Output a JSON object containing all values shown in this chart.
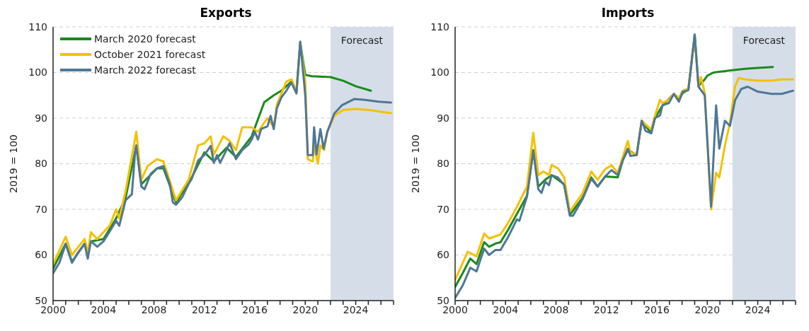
{
  "chart_data": [
    {
      "type": "line",
      "title": "Exports",
      "ylabel": "2019 = 100",
      "xlim": [
        2000,
        2027
      ],
      "xticks": [
        2000,
        {
          "value": 2001,
          "label": null
        },
        {
          "value": 2002,
          "label": null
        },
        {
          "value": 2003,
          "label": null
        },
        2004,
        {
          "value": 2005,
          "label": null
        },
        {
          "value": 2006,
          "label": null
        },
        {
          "value": 2007,
          "label": null
        },
        2008,
        {
          "value": 2009,
          "label": null
        },
        {
          "value": 2010,
          "label": null
        },
        {
          "value": 2011,
          "label": null
        },
        2012,
        {
          "value": 2013,
          "label": null
        },
        {
          "value": 2014,
          "label": null
        },
        {
          "value": 2015,
          "label": null
        },
        2016,
        {
          "value": 2017,
          "label": null
        },
        {
          "value": 2018,
          "label": null
        },
        {
          "value": 2019,
          "label": null
        },
        2020,
        {
          "value": 2021,
          "label": null
        },
        {
          "value": 2022,
          "label": null
        },
        {
          "value": 2023,
          "label": null
        },
        2024,
        {
          "value": 2025,
          "label": null
        },
        {
          "value": 2026,
          "label": null
        },
        {
          "value": 2027,
          "label": null
        }
      ],
      "ylim": [
        50,
        110
      ],
      "yticks": [
        50,
        60,
        70,
        80,
        90,
        100,
        110
      ],
      "grid": "y",
      "legend": "top left",
      "bands": [
        {
          "axis": "x",
          "from": 2022,
          "to": 2027,
          "label": "Forecast",
          "color": "#d5dee8"
        }
      ],
      "series": [
        {
          "name": "March 2020 forecast",
          "color": "#1a8a1a",
          "x": [
            2000,
            2001,
            2001.5,
            2002.5,
            2002.75,
            2003,
            2004,
            2005,
            2005.75,
            2006.6,
            2007,
            2008.25,
            2008.75,
            2009.75,
            2011,
            2012,
            2012.75,
            2013.75,
            2014.5,
            2015.75,
            2016.75,
            2017.5,
            2018.1,
            2018.9,
            2019.3,
            2019.6,
            2020,
            2020.5,
            2022,
            2023,
            2024,
            2025.2
          ],
          "values": [
            57,
            62.5,
            58.5,
            62.5,
            null,
            63,
            63.5,
            68,
            72.5,
            84,
            75.5,
            79,
            79,
            71.5,
            77,
            82.5,
            80.5,
            83.5,
            81.5,
            86,
            93.5,
            95,
            96,
            98,
            95.6,
            106.5,
            99.5,
            99.2,
            99,
            98.2,
            97,
            96
          ]
        },
        {
          "name": "October 2021 forecast",
          "color": "#f5c000",
          "x": [
            2000,
            2001,
            2001.5,
            2002.5,
            2002.75,
            2003,
            2003.5,
            2004.5,
            2005,
            2005.25,
            2005.75,
            2006.6,
            2007,
            2007.5,
            2008.25,
            2008.75,
            2009.75,
            2010.75,
            2011.5,
            2012,
            2012.5,
            2012.75,
            2013.5,
            2014,
            2014.5,
            2015,
            2015.75,
            2016.25,
            2017,
            2017.5,
            2017.75,
            2018.5,
            2018.9,
            2019.3,
            2019.6,
            2020,
            2020.2,
            2020.6,
            2020.7,
            2021,
            2021.2,
            2021.5,
            2021.75,
            2022.3,
            2023,
            2024,
            2025,
            2026,
            2026.8
          ],
          "values": [
            58,
            64,
            60,
            63.5,
            60.5,
            65,
            63.5,
            66.5,
            70,
            68,
            74,
            87,
            76.5,
            79.5,
            81,
            80.5,
            72,
            76.5,
            84,
            84.5,
            86,
            82,
            86,
            85,
            83,
            88,
            88,
            87,
            90,
            88,
            93,
            98,
            98.5,
            96,
            106.5,
            98,
            81,
            80.5,
            84,
            80,
            84,
            83,
            87,
            90.5,
            91.8,
            92,
            91.8,
            91.4,
            91.1
          ]
        },
        {
          "name": "March 2022 forecast",
          "color": "#4f7796",
          "x": [
            2000,
            2000.5,
            2001,
            2001.5,
            2002,
            2002.5,
            2002.75,
            2003,
            2003.5,
            2004,
            2004.5,
            2005,
            2005.25,
            2005.75,
            2006.25,
            2006.5,
            2006.6,
            2007,
            2007.25,
            2007.75,
            2008.25,
            2008.75,
            2009.25,
            2009.5,
            2009.75,
            2010.25,
            2010.75,
            2011,
            2011.5,
            2012,
            2012.5,
            2012.75,
            2013,
            2013.25,
            2013.75,
            2014,
            2014.5,
            2015,
            2015.5,
            2015.75,
            2016,
            2016.25,
            2016.5,
            2017,
            2017.25,
            2017.5,
            2017.75,
            2018.1,
            2018.5,
            2018.9,
            2019.3,
            2019.6,
            2020,
            2020.2,
            2020.6,
            2020.7,
            2020.9,
            2021.2,
            2021.45,
            2021.75,
            2022.3,
            2022.9,
            2023.9,
            2024.75,
            2025.8,
            2026.8
          ],
          "values": [
            56,
            58.3,
            62.4,
            58.3,
            60.6,
            62.4,
            59.2,
            63,
            61.8,
            63,
            65.2,
            67.5,
            66.4,
            72,
            73.3,
            82.4,
            84,
            75,
            74.4,
            77.8,
            79,
            79.5,
            75.6,
            71.5,
            71,
            72.7,
            75.6,
            76.7,
            80.7,
            81.9,
            83.9,
            80.2,
            81.9,
            80.2,
            83,
            84.5,
            81,
            83,
            84.2,
            85.3,
            87,
            85.3,
            87.6,
            88.2,
            90.5,
            87.6,
            92.2,
            94.5,
            96,
            97.8,
            95.4,
            106.8,
            95,
            81.9,
            81.9,
            88,
            82,
            87.6,
            83.3,
            87,
            91,
            92.8,
            94.2,
            94,
            93.6,
            93.4
          ]
        }
      ]
    },
    {
      "type": "line",
      "title": "Imports",
      "ylabel": "2019 = 100",
      "xlim": [
        2000,
        2027
      ],
      "xticks": [
        2000,
        {
          "value": 2001,
          "label": null
        },
        {
          "value": 2002,
          "label": null
        },
        {
          "value": 2003,
          "label": null
        },
        2004,
        {
          "value": 2005,
          "label": null
        },
        {
          "value": 2006,
          "label": null
        },
        {
          "value": 2007,
          "label": null
        },
        2008,
        {
          "value": 2009,
          "label": null
        },
        {
          "value": 2010,
          "label": null
        },
        {
          "value": 2011,
          "label": null
        },
        2012,
        {
          "value": 2013,
          "label": null
        },
        {
          "value": 2014,
          "label": null
        },
        {
          "value": 2015,
          "label": null
        },
        2016,
        {
          "value": 2017,
          "label": null
        },
        {
          "value": 2018,
          "label": null
        },
        {
          "value": 2019,
          "label": null
        },
        2020,
        {
          "value": 2021,
          "label": null
        },
        {
          "value": 2022,
          "label": null
        },
        {
          "value": 2023,
          "label": null
        },
        2024,
        {
          "value": 2025,
          "label": null
        },
        {
          "value": 2026,
          "label": null
        },
        {
          "value": 2027,
          "label": null
        }
      ],
      "ylim": [
        50,
        110
      ],
      "yticks": [
        50,
        60,
        70,
        80,
        90,
        100,
        110
      ],
      "grid": "y",
      "bands": [
        {
          "axis": "x",
          "from": 2022,
          "to": 2027,
          "label": "Forecast",
          "color": "#d5dee8"
        }
      ],
      "series": [
        {
          "color": "#1a8a1a",
          "x": [
            2000,
            2000.6,
            2001.2,
            2001.7,
            2002.3,
            2002.7,
            2003.2,
            2003.6,
            2004.2,
            2004.9,
            2005.7,
            2006.2,
            2006.6,
            2007.15,
            2007.65,
            2008.65,
            2009.1,
            2010.1,
            2010.8,
            2011.3,
            2011.9,
            2012.9,
            2013.3,
            2013.7,
            2014.4,
            2014.8,
            2015.55,
            2015.85,
            2016.45,
            2017.35,
            2017.75,
            2018.05,
            2018.5,
            2019,
            2019.3,
            2019.8,
            2020,
            2020.5,
            2022,
            2023,
            2024,
            2025.2
          ],
          "values": [
            53,
            56,
            59.2,
            58,
            62.8,
            61.8,
            62.5,
            62.8,
            65.5,
            69,
            73,
            83,
            75,
            76.5,
            77.5,
            75.5,
            68.8,
            72.5,
            77,
            75,
            77.2,
            77,
            80.8,
            83,
            81.9,
            89.4,
            86.7,
            90,
            92.8,
            95.3,
            94,
            95.5,
            96.3,
            108.3,
            97,
            98.5,
            99.3,
            100,
            100.5,
            100.8,
            101,
            101.2
          ]
        },
        {
          "color": "#f5c000",
          "x": [
            2000,
            2001,
            2001.7,
            2002.3,
            2002.7,
            2003.6,
            2004.2,
            2004.9,
            2005.7,
            2006.2,
            2006.6,
            2007,
            2007.45,
            2007.65,
            2008.15,
            2008.65,
            2009.1,
            2010.1,
            2010.8,
            2011.3,
            2011.9,
            2012.4,
            2012.9,
            2013.3,
            2013.7,
            2013.9,
            2014.4,
            2014.8,
            2015.55,
            2015.85,
            2016.25,
            2016.45,
            2016.95,
            2017.35,
            2017.75,
            2018.05,
            2018.5,
            2019,
            2019.3,
            2019.5,
            2019.8,
            2020.3,
            2020.7,
            2020.95,
            2021.4,
            2021.8,
            2022.2,
            2022.5,
            2023,
            2024,
            2025.1,
            2025.9,
            2026.8
          ],
          "values": [
            54.5,
            60.7,
            59.7,
            64.7,
            63.6,
            64.5,
            67,
            70.5,
            75,
            86.8,
            77.5,
            78.3,
            77.5,
            79.7,
            79,
            77,
            69.5,
            73.5,
            78.3,
            76.5,
            78.8,
            79.7,
            78,
            81.5,
            85,
            82.5,
            82,
            89.4,
            87.5,
            90.5,
            94,
            93.3,
            94,
            95.3,
            94.5,
            96,
            96.5,
            108,
            97,
            99,
            95.5,
            70,
            78,
            77,
            84,
            89,
            97,
            98.8,
            98.5,
            98.2,
            98.2,
            98.5,
            98.5
          ]
        },
        {
          "color": "#4f7796",
          "x": [
            2000,
            2000.6,
            2001.2,
            2001.7,
            2002.3,
            2002.7,
            2003.2,
            2003.6,
            2004.2,
            2004.9,
            2005.1,
            2005.7,
            2006.2,
            2006.6,
            2006.85,
            2007.15,
            2007.45,
            2007.65,
            2008.15,
            2008.65,
            2009.1,
            2009.35,
            2010.1,
            2010.8,
            2011.3,
            2011.9,
            2012.4,
            2012.9,
            2013.3,
            2013.7,
            2013.9,
            2014.4,
            2014.8,
            2015.1,
            2015.55,
            2015.85,
            2016.25,
            2016.45,
            2016.95,
            2017.35,
            2017.75,
            2018.05,
            2018.5,
            2019,
            2019.3,
            2019.8,
            2020.3,
            2020.7,
            2020.95,
            2021.4,
            2021.8,
            2022.2,
            2022.7,
            2023.2,
            2024,
            2025.1,
            2025.9,
            2026.8
          ],
          "values": [
            50.6,
            53.3,
            57.2,
            56.4,
            61.4,
            60,
            61.1,
            61.1,
            63.9,
            67.8,
            67.5,
            72.8,
            82.8,
            74.4,
            73.6,
            76.1,
            75.3,
            77.5,
            77,
            75.3,
            68.6,
            68.6,
            72.2,
            76.7,
            75,
            77.2,
            78.6,
            77.5,
            80.8,
            83.3,
            81.7,
            81.9,
            89.4,
            87.2,
            86.7,
            90,
            90.6,
            92.8,
            93.3,
            95.3,
            93.6,
            95.8,
            96.1,
            108.3,
            96.9,
            95,
            70.6,
            92.8,
            83.3,
            89.4,
            88.3,
            93.9,
            96.4,
            96.9,
            95.8,
            95.3,
            95.3,
            96
          ]
        }
      ]
    }
  ]
}
